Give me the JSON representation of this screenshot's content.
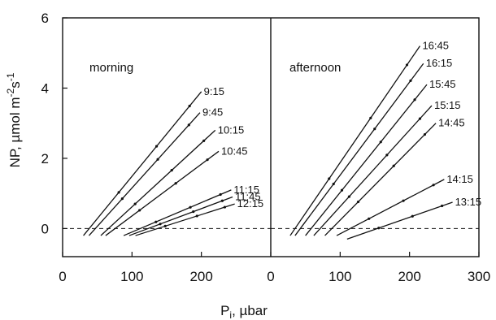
{
  "chart_data": {
    "type": "line",
    "xlabel": "P",
    "xlabel_sub": "i",
    "xlabel_unit": ", µbar",
    "ylabel": "NP, µmol m",
    "ylabel_sup1": "-2",
    "ylabel_mid": "s",
    "ylabel_sup2": "-1",
    "ylim": [
      -0.8,
      6
    ],
    "yticks": [
      0,
      2,
      4,
      6
    ],
    "zero_line": "dashed",
    "panels": [
      {
        "label": "morning",
        "xlim": [
          0,
          150
        ],
        "xticks": [
          {
            "value": 0,
            "label": "0"
          },
          {
            "value": 100,
            "label": "100"
          }
        ],
        "series": [
          {
            "name": "9:15",
            "x": [
              30,
              200
            ],
            "y": [
              -0.2,
              3.9
            ]
          },
          {
            "name": "9:45",
            "x": [
              38,
              198
            ],
            "y": [
              -0.2,
              3.3
            ]
          },
          {
            "name": "10:15",
            "x": [
              55,
              220
            ],
            "y": [
              -0.2,
              2.8
            ]
          },
          {
            "name": "10:45",
            "x": [
              62,
              225
            ],
            "y": [
              -0.2,
              2.2
            ]
          },
          {
            "name": "11:15",
            "x": [
              88,
              243
            ],
            "y": [
              -0.2,
              1.1
            ]
          },
          {
            "name": "11:45",
            "x": [
              96,
              245
            ],
            "y": [
              -0.2,
              0.9
            ]
          },
          {
            "name": "12:15",
            "x": [
              105,
              248
            ],
            "y": [
              -0.2,
              0.7
            ]
          }
        ]
      },
      {
        "label": "afternoon",
        "xlim": [
          0,
          150
        ],
        "xticks": [
          {
            "value": 150,
            "label": "300"
          }
        ],
        "series": [
          {
            "name": "16:45",
            "x": [
              28,
              215
            ],
            "y": [
              -0.2,
              5.2
            ]
          },
          {
            "name": "16:15",
            "x": [
              35,
              220
            ],
            "y": [
              -0.2,
              4.7
            ]
          },
          {
            "name": "15:45",
            "x": [
              50,
              225
            ],
            "y": [
              -0.2,
              4.1
            ]
          },
          {
            "name": "15:15",
            "x": [
              62,
              232
            ],
            "y": [
              -0.2,
              3.5
            ]
          },
          {
            "name": "14:45",
            "x": [
              78,
              238
            ],
            "y": [
              -0.2,
              3.0
            ]
          },
          {
            "name": "14:15",
            "x": [
              95,
              250
            ],
            "y": [
              -0.2,
              1.4
            ]
          },
          {
            "name": "13:15",
            "x": [
              110,
              262
            ],
            "y": [
              -0.3,
              0.75
            ]
          }
        ]
      }
    ],
    "axis_tick_labels_x": [
      "0",
      "100",
      "200",
      "0",
      "100",
      "200",
      "300"
    ]
  }
}
